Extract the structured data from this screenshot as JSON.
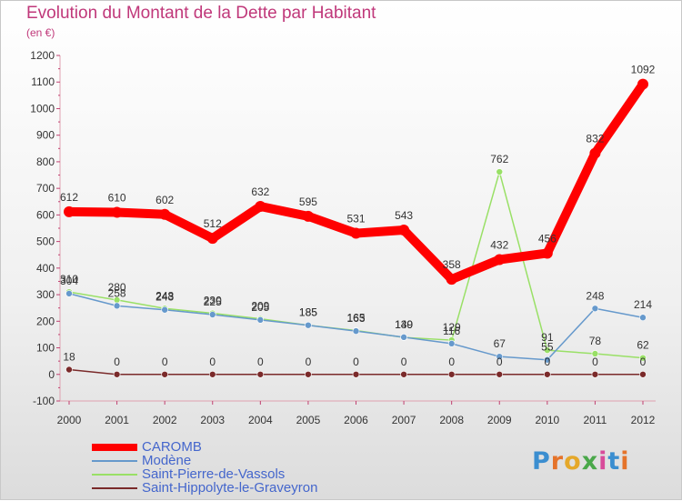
{
  "chart_data": {
    "type": "line",
    "title": "Evolution du Montant de la Dette par Habitant",
    "subtitle": "(en €)",
    "x": [
      "2000",
      "2001",
      "2002",
      "2003",
      "2004",
      "2005",
      "2006",
      "2007",
      "2008",
      "2009",
      "2010",
      "2011",
      "2012"
    ],
    "ylim": [
      -100,
      1200
    ],
    "yticks": [
      -100,
      0,
      100,
      200,
      300,
      400,
      500,
      600,
      700,
      800,
      900,
      1000,
      1100,
      1200
    ],
    "grid": false,
    "legend_position": "bottom-left",
    "series": [
      {
        "name": "CAROMB",
        "color": "#ff0000",
        "values": [
          612,
          610,
          602,
          512,
          632,
          595,
          531,
          543,
          358,
          432,
          456,
          832,
          1092
        ]
      },
      {
        "name": "Modène",
        "color": "#6699cc",
        "values": [
          304,
          258,
          243,
          225,
          205,
          185,
          163,
          140,
          116,
          67,
          55,
          248,
          214
        ]
      },
      {
        "name": "Saint-Pierre-de-Vassols",
        "color": "#99e066",
        "values": [
          310,
          280,
          248,
          230,
          209,
          185,
          165,
          139,
          129,
          762,
          91,
          78,
          62
        ]
      },
      {
        "name": "Saint-Hippolyte-le-Graveyron",
        "color": "#7a2a2a",
        "values": [
          18,
          0,
          0,
          0,
          0,
          0,
          0,
          0,
          0,
          0,
          0,
          0,
          0
        ]
      }
    ]
  },
  "logo": {
    "text": "Proxiti",
    "letter_colors": [
      "#3b8ed0",
      "#e5732a",
      "#e5a82a",
      "#4aa84a",
      "#d84a9a",
      "#3b8ed0",
      "#e5732a"
    ]
  }
}
